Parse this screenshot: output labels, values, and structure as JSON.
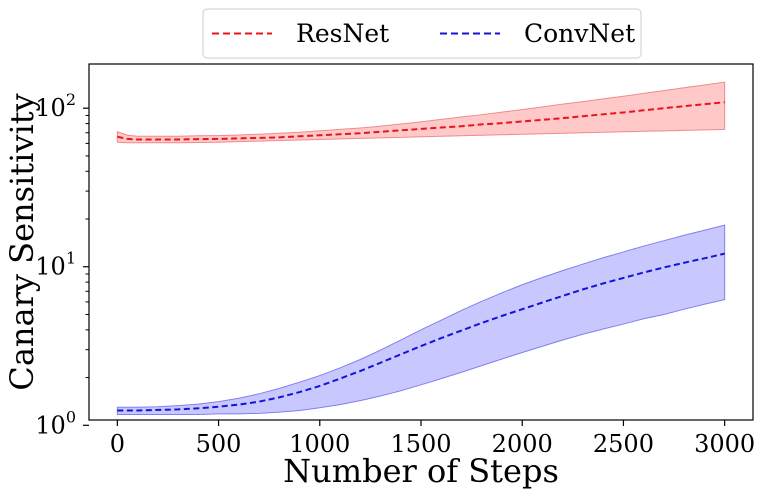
{
  "chart_data": {
    "type": "line",
    "title": "",
    "xlabel": "Number of Steps",
    "ylabel": "Canary Sensitivity",
    "xlim": [
      -140,
      3140
    ],
    "ylim": [
      1.08,
      190
    ],
    "yscale": "log",
    "xticks": [
      0,
      500,
      1000,
      1500,
      2000,
      2500,
      3000
    ],
    "xtick_labels": [
      "0",
      "500",
      "1000",
      "1500",
      "2000",
      "2500",
      "3000"
    ],
    "yticks": [
      1,
      10,
      100
    ],
    "ytick_labels": [
      {
        "base": "10",
        "exp": "0"
      },
      {
        "base": "10",
        "exp": "1"
      },
      {
        "base": "10",
        "exp": "2"
      }
    ],
    "legend": {
      "placement": "top-center outside",
      "entries": [
        "ResNet",
        "ConvNet"
      ]
    },
    "x": [
      0,
      50,
      100,
      200,
      300,
      400,
      500,
      600,
      700,
      800,
      900,
      1000,
      1100,
      1200,
      1300,
      1400,
      1500,
      1600,
      1700,
      1800,
      1900,
      2000,
      2100,
      2200,
      2300,
      2400,
      2500,
      2600,
      2700,
      2800,
      2900,
      3000
    ],
    "series": [
      {
        "name": "ResNet",
        "color": "#e8141c",
        "band_color": "#ffc9c9",
        "band_edge": "#f08a8a",
        "values": [
          66,
          64,
          63.5,
          63.5,
          63.5,
          63.8,
          64,
          64.5,
          65,
          65.5,
          66.5,
          67.5,
          68.5,
          69.5,
          71,
          72.5,
          74,
          75.5,
          77,
          79,
          80.5,
          82.5,
          84.5,
          86.5,
          89,
          91.5,
          94,
          97,
          100,
          103,
          106,
          109
        ],
        "lower": [
          61,
          60.5,
          60.5,
          60.5,
          60.5,
          60.8,
          61,
          61.5,
          62,
          62.5,
          63,
          63.5,
          64,
          64.5,
          65,
          65.5,
          66,
          66.5,
          67,
          67.5,
          68,
          68.5,
          69,
          69.5,
          70,
          70.5,
          71,
          71.5,
          72,
          72.5,
          73,
          73.5
        ],
        "upper": [
          71,
          67.5,
          66.5,
          66.5,
          66.5,
          67,
          67.2,
          67.8,
          68.5,
          69.5,
          70.5,
          72,
          73.5,
          75,
          77,
          79.5,
          82,
          85,
          88,
          91,
          94.5,
          98,
          102,
          106,
          110,
          114.5,
          119,
          124,
          129,
          134.5,
          140,
          146
        ]
      },
      {
        "name": "ConvNet",
        "color": "#1414d8",
        "band_color": "#c8c8ff",
        "band_edge": "#8080ee",
        "values": [
          1.24,
          1.24,
          1.24,
          1.25,
          1.26,
          1.28,
          1.31,
          1.35,
          1.41,
          1.5,
          1.62,
          1.77,
          1.97,
          2.2,
          2.48,
          2.8,
          3.16,
          3.55,
          3.96,
          4.42,
          4.9,
          5.4,
          5.95,
          6.55,
          7.2,
          7.85,
          8.5,
          9.2,
          9.9,
          10.6,
          11.3,
          12.1
        ],
        "lower": [
          1.17,
          1.17,
          1.17,
          1.17,
          1.17,
          1.17,
          1.18,
          1.18,
          1.19,
          1.21,
          1.24,
          1.29,
          1.35,
          1.43,
          1.53,
          1.65,
          1.8,
          1.97,
          2.16,
          2.38,
          2.62,
          2.88,
          3.15,
          3.45,
          3.75,
          4.05,
          4.35,
          4.7,
          5.0,
          5.4,
          5.8,
          6.2
        ],
        "upper": [
          1.3,
          1.3,
          1.3,
          1.31,
          1.33,
          1.36,
          1.41,
          1.48,
          1.58,
          1.71,
          1.87,
          2.06,
          2.3,
          2.6,
          2.98,
          3.45,
          4.0,
          4.6,
          5.3,
          6.05,
          6.85,
          7.7,
          8.55,
          9.45,
          10.4,
          11.4,
          12.4,
          13.5,
          14.6,
          15.8,
          17.0,
          18.3
        ]
      }
    ]
  }
}
